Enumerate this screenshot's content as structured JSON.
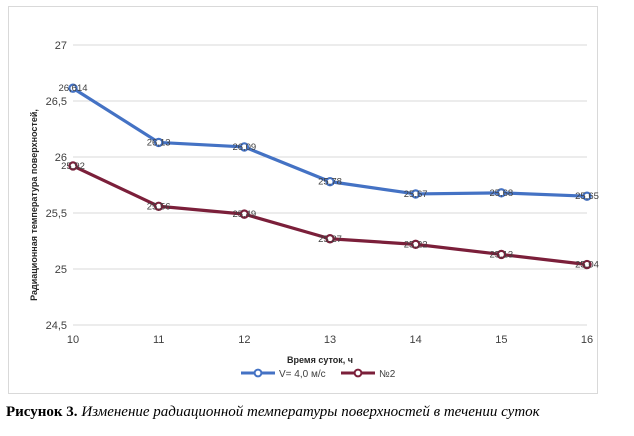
{
  "chart_data": {
    "type": "line",
    "x": [
      10,
      11,
      12,
      13,
      14,
      15,
      16
    ],
    "xlabel": "Время суток, ч",
    "ylabel": "Радиационная температура поверхностей,",
    "ylim": [
      24.5,
      27
    ],
    "yticks": [
      "24,5",
      "25",
      "25,5",
      "26",
      "26,5",
      "27"
    ],
    "ytick_values": [
      24.5,
      25,
      25.5,
      26,
      26.5,
      27
    ],
    "grid": true,
    "legend_position": "bottom",
    "series": [
      {
        "name": "V= 4,0 м/с",
        "color": "#4472c4",
        "values": [
          26.614,
          26.13,
          26.09,
          25.78,
          25.67,
          25.68,
          25.65
        ],
        "labels": [
          "26,614",
          "26,13",
          "26,09",
          "25,78",
          "25,67",
          "25,68",
          "25,65"
        ]
      },
      {
        "name": "№2",
        "color": "#7b1f3a",
        "values": [
          25.92,
          25.56,
          25.49,
          25.27,
          25.22,
          25.13,
          25.04
        ],
        "labels": [
          "25,92",
          "25,56",
          "25,49",
          "25,27",
          "25,22",
          "25,13",
          "25,04"
        ]
      }
    ]
  },
  "caption": {
    "label": "Рисунок 3.",
    "text": " Изменение радиационной температуры поверхностей в течении суток"
  }
}
